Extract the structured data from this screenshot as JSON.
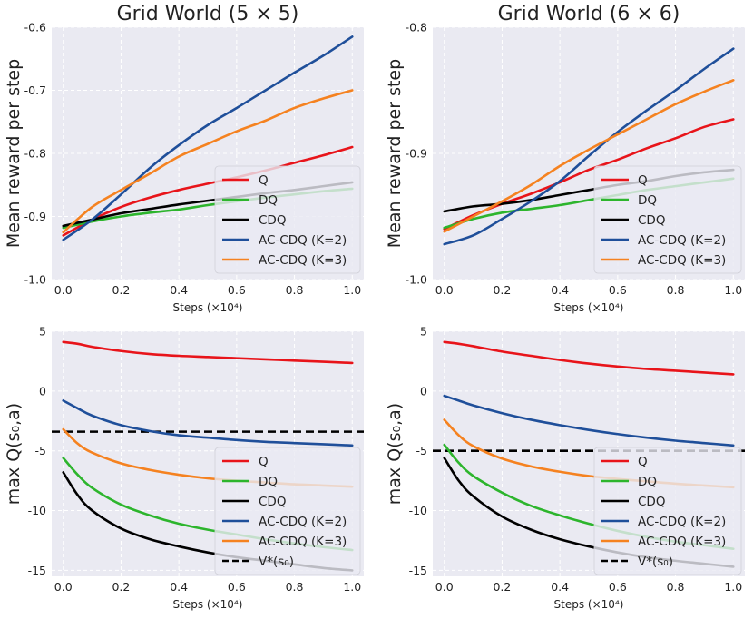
{
  "chart_data": [
    {
      "type": "line",
      "title": "Grid World (5 × 5)",
      "xlabel": "Steps (×10⁴)",
      "ylabel": "Mean reward per step",
      "xlim": [
        -0.04,
        1.04
      ],
      "ylim": [
        -1.0,
        -0.6
      ],
      "xticks": [
        0.0,
        0.2,
        0.4,
        0.6,
        0.8,
        1.0
      ],
      "xtick_labels": [
        "0.0",
        "0.2",
        "0.4",
        "0.6",
        "0.8",
        "1.0"
      ],
      "yticks": [
        -1.0,
        -0.9,
        -0.8,
        -0.7,
        -0.6
      ],
      "ytick_labels": [
        "-1.0",
        "-0.9",
        "-0.8",
        "-0.7",
        "-0.6"
      ],
      "grid": true,
      "legend_position": "lower-right",
      "series": [
        {
          "name": "Q",
          "color": "#e8141a",
          "x": [
            0,
            0.1,
            0.2,
            0.3,
            0.4,
            0.5,
            0.6,
            0.7,
            0.8,
            0.9,
            1.0
          ],
          "values": [
            -0.93,
            -0.905,
            -0.885,
            -0.87,
            -0.858,
            -0.848,
            -0.838,
            -0.827,
            -0.815,
            -0.803,
            -0.79
          ]
        },
        {
          "name": "DQ",
          "color": "#2db52d",
          "x": [
            0,
            0.1,
            0.2,
            0.3,
            0.4,
            0.5,
            0.6,
            0.7,
            0.8,
            0.9,
            1.0
          ],
          "values": [
            -0.918,
            -0.908,
            -0.9,
            -0.894,
            -0.889,
            -0.882,
            -0.876,
            -0.87,
            -0.865,
            -0.86,
            -0.856
          ]
        },
        {
          "name": "CDQ",
          "color": "#000000",
          "x": [
            0,
            0.1,
            0.2,
            0.3,
            0.4,
            0.5,
            0.6,
            0.7,
            0.8,
            0.9,
            1.0
          ],
          "values": [
            -0.915,
            -0.905,
            -0.895,
            -0.888,
            -0.881,
            -0.875,
            -0.869,
            -0.863,
            -0.858,
            -0.852,
            -0.846
          ]
        },
        {
          "name": "AC-CDQ (K=2)",
          "color": "#1f4f9a",
          "x": [
            0,
            0.1,
            0.2,
            0.3,
            0.4,
            0.5,
            0.6,
            0.7,
            0.8,
            0.9,
            1.0
          ],
          "values": [
            -0.937,
            -0.905,
            -0.865,
            -0.823,
            -0.787,
            -0.755,
            -0.728,
            -0.7,
            -0.672,
            -0.645,
            -0.615
          ]
        },
        {
          "name": "AC-CDQ (K=3)",
          "color": "#f58220",
          "x": [
            0,
            0.1,
            0.2,
            0.3,
            0.4,
            0.5,
            0.6,
            0.7,
            0.8,
            0.9,
            1.0
          ],
          "values": [
            -0.925,
            -0.885,
            -0.858,
            -0.832,
            -0.805,
            -0.785,
            -0.765,
            -0.748,
            -0.728,
            -0.713,
            -0.7
          ]
        }
      ]
    },
    {
      "type": "line",
      "title": "Grid World (6 × 6)",
      "xlabel": "Steps (×10⁴)",
      "ylabel": "Mean reward per step",
      "xlim": [
        -0.04,
        1.04
      ],
      "ylim": [
        -1.0,
        -0.8
      ],
      "xticks": [
        0.0,
        0.2,
        0.4,
        0.6,
        0.8,
        1.0
      ],
      "xtick_labels": [
        "0.0",
        "0.2",
        "0.4",
        "0.6",
        "0.8",
        "1.0"
      ],
      "yticks": [
        -1.0,
        -0.9,
        -0.8
      ],
      "ytick_labels": [
        "-1.0",
        "-0.9",
        "-0.8"
      ],
      "grid": true,
      "legend_position": "lower-right",
      "series": [
        {
          "name": "Q",
          "color": "#e8141a",
          "x": [
            0,
            0.1,
            0.2,
            0.3,
            0.4,
            0.5,
            0.6,
            0.7,
            0.8,
            0.9,
            1.0
          ],
          "values": [
            -0.96,
            -0.949,
            -0.94,
            -0.932,
            -0.923,
            -0.913,
            -0.905,
            -0.896,
            -0.888,
            -0.879,
            -0.873
          ]
        },
        {
          "name": "DQ",
          "color": "#2db52d",
          "x": [
            0,
            0.1,
            0.2,
            0.3,
            0.4,
            0.5,
            0.6,
            0.7,
            0.8,
            0.9,
            1.0
          ],
          "values": [
            -0.959,
            -0.952,
            -0.947,
            -0.944,
            -0.941,
            -0.937,
            -0.933,
            -0.929,
            -0.926,
            -0.923,
            -0.92
          ]
        },
        {
          "name": "CDQ",
          "color": "#000000",
          "x": [
            0,
            0.1,
            0.2,
            0.3,
            0.4,
            0.5,
            0.6,
            0.7,
            0.8,
            0.9,
            1.0
          ],
          "values": [
            -0.946,
            -0.942,
            -0.94,
            -0.937,
            -0.933,
            -0.929,
            -0.925,
            -0.922,
            -0.918,
            -0.915,
            -0.913
          ]
        },
        {
          "name": "AC-CDQ (K=2)",
          "color": "#1f4f9a",
          "x": [
            0,
            0.1,
            0.2,
            0.3,
            0.4,
            0.5,
            0.6,
            0.7,
            0.8,
            0.9,
            1.0
          ],
          "values": [
            -0.972,
            -0.965,
            -0.952,
            -0.938,
            -0.922,
            -0.902,
            -0.883,
            -0.866,
            -0.85,
            -0.833,
            -0.817
          ]
        },
        {
          "name": "AC-CDQ (K=3)",
          "color": "#f58220",
          "x": [
            0,
            0.1,
            0.2,
            0.3,
            0.4,
            0.5,
            0.6,
            0.7,
            0.8,
            0.9,
            1.0
          ],
          "values": [
            -0.962,
            -0.95,
            -0.938,
            -0.925,
            -0.91,
            -0.897,
            -0.885,
            -0.873,
            -0.861,
            -0.851,
            -0.842
          ]
        }
      ]
    },
    {
      "type": "line",
      "xlabel": "Steps (×10⁴)",
      "ylabel": "max Q(s₀,a)",
      "xlim": [
        -0.04,
        1.04
      ],
      "ylim": [
        -15.5,
        5.0
      ],
      "xticks": [
        0.0,
        0.2,
        0.4,
        0.6,
        0.8,
        1.0
      ],
      "xtick_labels": [
        "0.0",
        "0.2",
        "0.4",
        "0.6",
        "0.8",
        "1.0"
      ],
      "yticks": [
        -15,
        -10,
        -5,
        0,
        5
      ],
      "ytick_labels": [
        "-15",
        "-10",
        "-5",
        "0",
        "5"
      ],
      "grid": true,
      "legend_position": "lower-right",
      "hline": {
        "name": "V*(s₀)",
        "value": -3.4,
        "color": "#000000"
      },
      "series": [
        {
          "name": "Q",
          "color": "#e8141a",
          "x": [
            0,
            0.05,
            0.1,
            0.2,
            0.3,
            0.4,
            0.5,
            0.6,
            0.7,
            0.8,
            0.9,
            1.0
          ],
          "values": [
            4.1,
            3.95,
            3.7,
            3.35,
            3.1,
            2.95,
            2.85,
            2.75,
            2.65,
            2.55,
            2.45,
            2.35
          ]
        },
        {
          "name": "DQ",
          "color": "#2db52d",
          "x": [
            0,
            0.05,
            0.1,
            0.2,
            0.3,
            0.4,
            0.5,
            0.6,
            0.7,
            0.8,
            0.9,
            1.0
          ],
          "values": [
            -5.6,
            -7.0,
            -8.1,
            -9.5,
            -10.4,
            -11.1,
            -11.6,
            -12.0,
            -12.4,
            -12.75,
            -13.05,
            -13.3
          ]
        },
        {
          "name": "CDQ",
          "color": "#000000",
          "x": [
            0,
            0.05,
            0.1,
            0.2,
            0.3,
            0.4,
            0.5,
            0.6,
            0.7,
            0.8,
            0.9,
            1.0
          ],
          "values": [
            -6.8,
            -8.7,
            -10.0,
            -11.5,
            -12.4,
            -13.0,
            -13.5,
            -13.9,
            -14.2,
            -14.5,
            -14.8,
            -15.0
          ]
        },
        {
          "name": "AC-CDQ (K=2)",
          "color": "#1f4f9a",
          "x": [
            0,
            0.05,
            0.1,
            0.2,
            0.3,
            0.4,
            0.5,
            0.6,
            0.7,
            0.8,
            0.9,
            1.0
          ],
          "values": [
            -0.8,
            -1.45,
            -2.05,
            -2.85,
            -3.35,
            -3.7,
            -3.9,
            -4.1,
            -4.25,
            -4.35,
            -4.45,
            -4.55
          ]
        },
        {
          "name": "AC-CDQ (K=3)",
          "color": "#f58220",
          "x": [
            0,
            0.05,
            0.1,
            0.2,
            0.3,
            0.4,
            0.5,
            0.6,
            0.7,
            0.8,
            0.9,
            1.0
          ],
          "values": [
            -3.2,
            -4.4,
            -5.15,
            -6.05,
            -6.6,
            -7.0,
            -7.3,
            -7.5,
            -7.65,
            -7.8,
            -7.9,
            -8.0
          ]
        }
      ]
    },
    {
      "type": "line",
      "xlabel": "Steps (×10⁴)",
      "ylabel": "max Q(s₀,a)",
      "xlim": [
        -0.04,
        1.04
      ],
      "ylim": [
        -15.5,
        5.0
      ],
      "xticks": [
        0.0,
        0.2,
        0.4,
        0.6,
        0.8,
        1.0
      ],
      "xtick_labels": [
        "0.0",
        "0.2",
        "0.4",
        "0.6",
        "0.8",
        "1.0"
      ],
      "yticks": [
        -15,
        -10,
        -5,
        0,
        5
      ],
      "ytick_labels": [
        "-15",
        "-10",
        "-5",
        "0",
        "5"
      ],
      "grid": true,
      "legend_position": "lower-right",
      "hline": {
        "name": "V*(s₀)",
        "value": -5.0,
        "color": "#000000"
      },
      "series": [
        {
          "name": "Q",
          "color": "#e8141a",
          "x": [
            0,
            0.05,
            0.1,
            0.2,
            0.3,
            0.4,
            0.5,
            0.6,
            0.7,
            0.8,
            0.9,
            1.0
          ],
          "values": [
            4.1,
            3.95,
            3.75,
            3.3,
            2.95,
            2.6,
            2.3,
            2.05,
            1.85,
            1.7,
            1.55,
            1.4
          ]
        },
        {
          "name": "DQ",
          "color": "#2db52d",
          "x": [
            0,
            0.05,
            0.1,
            0.2,
            0.3,
            0.4,
            0.5,
            0.6,
            0.7,
            0.8,
            0.9,
            1.0
          ],
          "values": [
            -4.5,
            -6.0,
            -7.1,
            -8.5,
            -9.6,
            -10.4,
            -11.1,
            -11.7,
            -12.2,
            -12.6,
            -12.9,
            -13.2
          ]
        },
        {
          "name": "CDQ",
          "color": "#000000",
          "x": [
            0,
            0.05,
            0.1,
            0.2,
            0.3,
            0.4,
            0.5,
            0.6,
            0.7,
            0.8,
            0.9,
            1.0
          ],
          "values": [
            -5.6,
            -7.5,
            -8.8,
            -10.5,
            -11.6,
            -12.4,
            -13.0,
            -13.5,
            -13.9,
            -14.2,
            -14.45,
            -14.7
          ]
        },
        {
          "name": "AC-CDQ (K=2)",
          "color": "#1f4f9a",
          "x": [
            0,
            0.05,
            0.1,
            0.2,
            0.3,
            0.4,
            0.5,
            0.6,
            0.7,
            0.8,
            0.9,
            1.0
          ],
          "values": [
            -0.4,
            -0.8,
            -1.2,
            -1.85,
            -2.4,
            -2.85,
            -3.25,
            -3.6,
            -3.9,
            -4.15,
            -4.35,
            -4.55
          ]
        },
        {
          "name": "AC-CDQ (K=3)",
          "color": "#f58220",
          "x": [
            0,
            0.05,
            0.1,
            0.2,
            0.3,
            0.4,
            0.5,
            0.6,
            0.7,
            0.8,
            0.9,
            1.0
          ],
          "values": [
            -2.4,
            -3.7,
            -4.6,
            -5.65,
            -6.3,
            -6.75,
            -7.1,
            -7.35,
            -7.55,
            -7.75,
            -7.9,
            -8.05
          ]
        }
      ]
    }
  ]
}
